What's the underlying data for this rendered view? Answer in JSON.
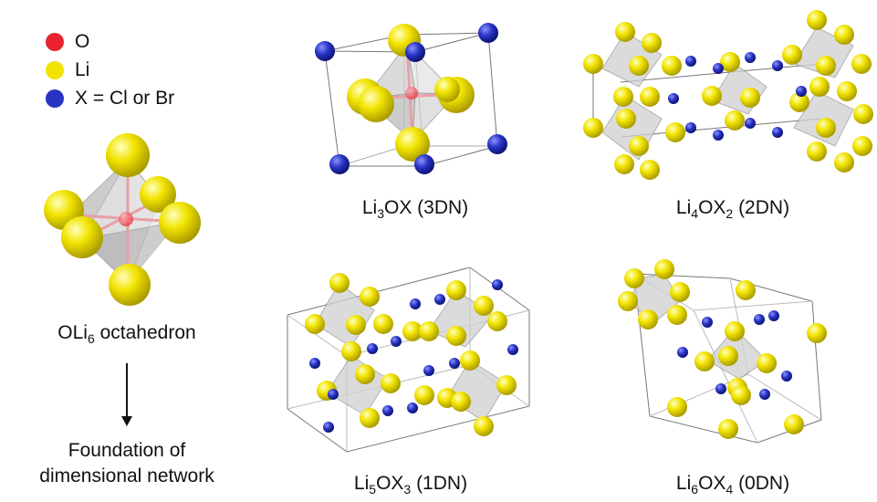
{
  "legend": [
    {
      "symbol": "O",
      "color": "#e8232b"
    },
    {
      "symbol": "Li",
      "color": "#f2e400"
    },
    {
      "symbol": "X = Cl or Br",
      "color": "#2833c4"
    }
  ],
  "octahedron": {
    "formula": "OLi",
    "sub": "6",
    "suffix": "octahedron"
  },
  "foundation": {
    "line1": "Foundation of",
    "line2": "dimensional network"
  },
  "structures": {
    "li3ox": {
      "p1": "Li",
      "s1": "3",
      "p2": "OX",
      "s2": "",
      "tag": "(3DN)"
    },
    "li4ox2": {
      "p1": "Li",
      "s1": "4",
      "p2": "OX",
      "s2": "2",
      "tag": "(2DN)"
    },
    "li5ox3": {
      "p1": "Li",
      "s1": "5",
      "p2": "OX",
      "s2": "3",
      "tag": "(1DN)"
    },
    "li6ox4": {
      "p1": "Li",
      "s1": "6",
      "p2": "OX",
      "s2": "4",
      "tag": "(0DN)"
    }
  },
  "colors": {
    "oxygen": "#e8232b",
    "lithium": "#f2e400",
    "halide": "#2833c4",
    "bond": "#e8a0a8",
    "polyhedron": "#c8c8c8"
  }
}
